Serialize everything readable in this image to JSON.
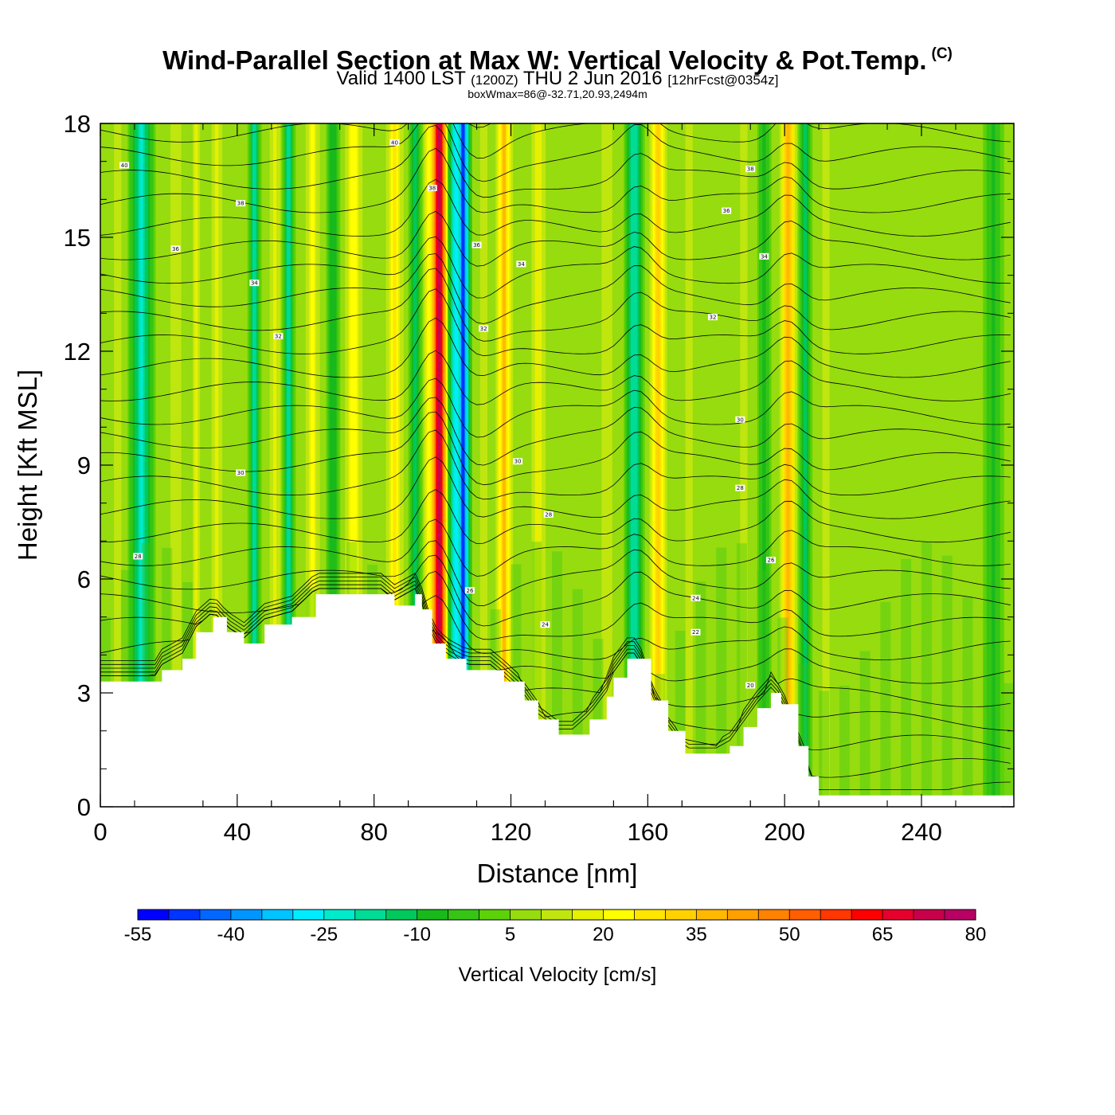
{
  "title": {
    "main": "Wind-Parallel Section at Max W: Vertical Velocity & Pot.Temp.",
    "copyright": "(C)",
    "valid_prefix": "Valid 1400 LST",
    "valid_utc": "(1200Z)",
    "valid_date": "THU 2 Jun 2016",
    "forecast": "[12hrFcst@0354z]",
    "box_note": "boxWmax=86@-32.71,20.93,2494m"
  },
  "chart_data": {
    "type": "heatmap",
    "xlabel": "Distance [nm]",
    "ylabel": "Height [Kft MSL]",
    "xlim": [
      0,
      267
    ],
    "ylim": [
      0,
      18
    ],
    "x_ticks": [
      "0",
      "40",
      "80",
      "120",
      "160",
      "200",
      "240"
    ],
    "y_ticks": [
      "0",
      "3",
      "6",
      "9",
      "12",
      "15",
      "18"
    ],
    "background_w": 5,
    "w_bands": [
      {
        "x": 5,
        "w": 12,
        "width": 4
      },
      {
        "x": 12,
        "w": -22,
        "width": 4
      },
      {
        "x": 22,
        "w": 15,
        "width": 3
      },
      {
        "x": 28,
        "w": 17,
        "width": 2
      },
      {
        "x": 34,
        "w": 18,
        "width": 2.5
      },
      {
        "x": 45,
        "w": -20,
        "width": 2
      },
      {
        "x": 51,
        "w": 20,
        "width": 2
      },
      {
        "x": 55,
        "w": -20,
        "width": 2
      },
      {
        "x": 62,
        "w": 22,
        "width": 2.5
      },
      {
        "x": 68,
        "w": -12,
        "width": 2
      },
      {
        "x": 74,
        "w": 25,
        "width": 3
      },
      {
        "x": 86,
        "w": 28,
        "width": 3
      },
      {
        "x": 92,
        "w": -15,
        "width": 2
      },
      {
        "x": 98,
        "w": 40,
        "width": 4
      },
      {
        "x": 99,
        "w": 80,
        "width": 3
      },
      {
        "x": 104,
        "w": -30,
        "width": 3
      },
      {
        "x": 106,
        "w": -52,
        "width": 2.5
      },
      {
        "x": 112,
        "w": 15,
        "width": 2
      },
      {
        "x": 118,
        "w": 38,
        "width": 3
      },
      {
        "x": 128,
        "w": 20,
        "width": 3
      },
      {
        "x": 148,
        "w": 15,
        "width": 3
      },
      {
        "x": 156,
        "w": -22,
        "width": 3
      },
      {
        "x": 163,
        "w": 35,
        "width": 3
      },
      {
        "x": 172,
        "w": 12,
        "width": 3
      },
      {
        "x": 188,
        "w": 12,
        "width": 3
      },
      {
        "x": 194,
        "w": -10,
        "width": 2
      },
      {
        "x": 201,
        "w": 40,
        "width": 3
      },
      {
        "x": 206,
        "w": -15,
        "width": 2
      },
      {
        "x": 212,
        "w": 12,
        "width": 3
      },
      {
        "x": 261,
        "w": -8,
        "width": 3
      }
    ],
    "terrain_kft": [
      [
        0,
        3.3
      ],
      [
        16,
        3.3
      ],
      [
        18,
        3.6
      ],
      [
        24,
        3.9
      ],
      [
        28,
        4.6
      ],
      [
        33,
        5.0
      ],
      [
        37,
        4.6
      ],
      [
        42,
        4.3
      ],
      [
        48,
        4.8
      ],
      [
        56,
        5.0
      ],
      [
        63,
        5.6
      ],
      [
        70,
        5.6
      ],
      [
        82,
        5.6
      ],
      [
        86,
        5.3
      ],
      [
        92,
        5.6
      ],
      [
        94,
        5.2
      ],
      [
        97,
        4.3
      ],
      [
        101,
        3.9
      ],
      [
        107,
        3.6
      ],
      [
        114,
        3.6
      ],
      [
        118,
        3.3
      ],
      [
        124,
        2.8
      ],
      [
        128,
        2.3
      ],
      [
        134,
        1.9
      ],
      [
        138,
        1.9
      ],
      [
        143,
        2.3
      ],
      [
        148,
        2.9
      ],
      [
        150,
        3.4
      ],
      [
        154,
        3.9
      ],
      [
        157,
        3.9
      ],
      [
        161,
        2.8
      ],
      [
        166,
        2.0
      ],
      [
        171,
        1.4
      ],
      [
        180,
        1.4
      ],
      [
        184,
        1.6
      ],
      [
        188,
        2.1
      ],
      [
        192,
        2.6
      ],
      [
        196,
        3.0
      ],
      [
        199,
        2.7
      ],
      [
        204,
        1.6
      ],
      [
        207,
        0.8
      ],
      [
        210,
        0.3
      ],
      [
        212,
        0.3
      ],
      [
        258,
        0.3
      ],
      [
        267,
        0.3
      ]
    ],
    "theta_contour_labels": [
      {
        "x": 7,
        "y": 16.9,
        "label": "40"
      },
      {
        "x": 41,
        "y": 15.9,
        "label": "38"
      },
      {
        "x": 22,
        "y": 14.7,
        "label": "36"
      },
      {
        "x": 45,
        "y": 13.8,
        "label": "34"
      },
      {
        "x": 52,
        "y": 12.4,
        "label": "32"
      },
      {
        "x": 41,
        "y": 8.8,
        "label": "30"
      },
      {
        "x": 11,
        "y": 6.6,
        "label": "28"
      },
      {
        "x": 86,
        "y": 17.5,
        "label": "40"
      },
      {
        "x": 97,
        "y": 16.3,
        "label": "38"
      },
      {
        "x": 110,
        "y": 14.8,
        "label": "36"
      },
      {
        "x": 123,
        "y": 14.3,
        "label": "34"
      },
      {
        "x": 112,
        "y": 12.6,
        "label": "32"
      },
      {
        "x": 122,
        "y": 9.1,
        "label": "30"
      },
      {
        "x": 131,
        "y": 7.7,
        "label": "28"
      },
      {
        "x": 108,
        "y": 5.7,
        "label": "26"
      },
      {
        "x": 130,
        "y": 4.8,
        "label": "24"
      },
      {
        "x": 190,
        "y": 16.8,
        "label": "38"
      },
      {
        "x": 183,
        "y": 15.7,
        "label": "36"
      },
      {
        "x": 194,
        "y": 14.5,
        "label": "34"
      },
      {
        "x": 179,
        "y": 12.9,
        "label": "32"
      },
      {
        "x": 187,
        "y": 10.2,
        "label": "30"
      },
      {
        "x": 187,
        "y": 8.4,
        "label": "28"
      },
      {
        "x": 196,
        "y": 6.5,
        "label": "26"
      },
      {
        "x": 174,
        "y": 5.5,
        "label": "24"
      },
      {
        "x": 174,
        "y": 4.6,
        "label": "22"
      },
      {
        "x": 190,
        "y": 3.2,
        "label": "20"
      }
    ]
  },
  "colorbar": {
    "title": "Vertical Velocity [cm/s]",
    "min": -55,
    "step": 5,
    "labels": [
      "-55",
      "-40",
      "-25",
      "-10",
      "5",
      "20",
      "35",
      "50",
      "65",
      "80"
    ],
    "colors": [
      "#0000ff",
      "#0034ff",
      "#0068ff",
      "#0096ff",
      "#00c4ff",
      "#00ecff",
      "#00eacc",
      "#00db96",
      "#00c85c",
      "#19b91c",
      "#36c514",
      "#5cd208",
      "#96dc0f",
      "#c0e60f",
      "#e6f000",
      "#ffff00",
      "#ffe600",
      "#ffd200",
      "#ffb900",
      "#ffa000",
      "#ff8200",
      "#ff5f00",
      "#ff3700",
      "#ff0000",
      "#e6002d",
      "#c8004b",
      "#b90064"
    ]
  }
}
